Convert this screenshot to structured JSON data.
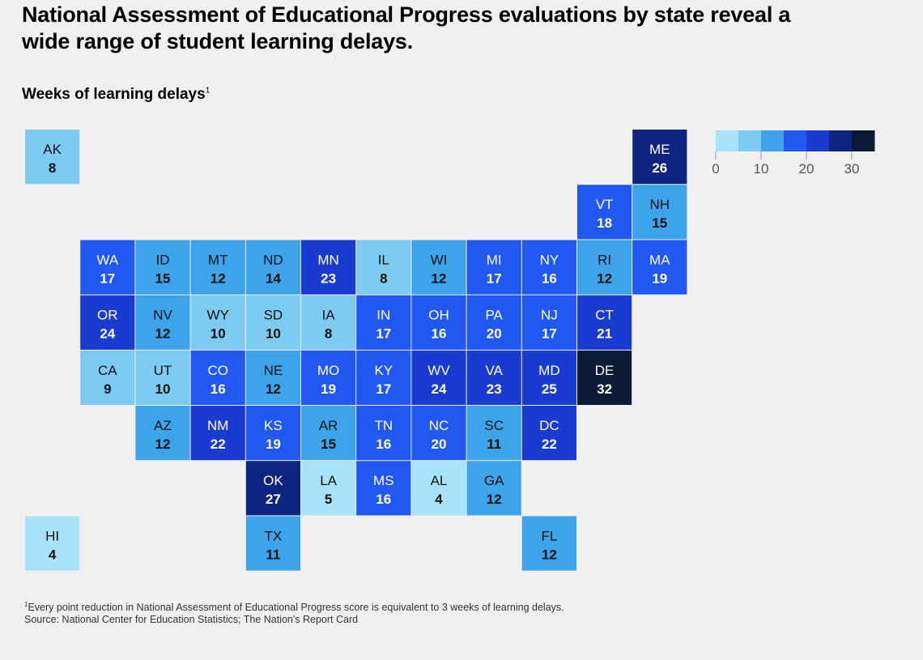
{
  "title": "National Assessment of Educational Progress evaluations by state reveal a wide range of student learning delays.",
  "subtitle": "Weeks of learning delays",
  "subtitle_footnote_mark": "1",
  "footnote_mark": "1",
  "footnote": "Every point reduction in National Assessment of Educational Progress score is equivalent to 3 weeks of learning delays.",
  "source": "Source: National Center for Education Statistics; The Nation's Report Card",
  "chart_data": {
    "type": "heatmap",
    "title": "National Assessment of Educational Progress evaluations by state reveal a wide range of student learning delays.",
    "value_label": "Weeks of learning delays",
    "legend": {
      "ticks": [
        0,
        10,
        20,
        30
      ],
      "colors": [
        "#a9e2fb",
        "#7ecbf1",
        "#3da3ea",
        "#2158f2",
        "#1a3bd0",
        "#0f2381",
        "#0b1a35"
      ],
      "placement": "top-right"
    },
    "states": [
      {
        "abbr": "AK",
        "value": 8,
        "row": 0,
        "col": 0
      },
      {
        "abbr": "ME",
        "value": 26,
        "row": 0,
        "col": 11
      },
      {
        "abbr": "VT",
        "value": 18,
        "row": 1,
        "col": 10
      },
      {
        "abbr": "NH",
        "value": 15,
        "row": 1,
        "col": 11
      },
      {
        "abbr": "WA",
        "value": 17,
        "row": 2,
        "col": 1
      },
      {
        "abbr": "ID",
        "value": 15,
        "row": 2,
        "col": 2
      },
      {
        "abbr": "MT",
        "value": 12,
        "row": 2,
        "col": 3
      },
      {
        "abbr": "ND",
        "value": 14,
        "row": 2,
        "col": 4
      },
      {
        "abbr": "MN",
        "value": 23,
        "row": 2,
        "col": 5
      },
      {
        "abbr": "IL",
        "value": 8,
        "row": 2,
        "col": 6
      },
      {
        "abbr": "WI",
        "value": 12,
        "row": 2,
        "col": 7
      },
      {
        "abbr": "MI",
        "value": 17,
        "row": 2,
        "col": 8
      },
      {
        "abbr": "NY",
        "value": 16,
        "row": 2,
        "col": 9
      },
      {
        "abbr": "RI",
        "value": 12,
        "row": 2,
        "col": 10
      },
      {
        "abbr": "MA",
        "value": 19,
        "row": 2,
        "col": 11
      },
      {
        "abbr": "OR",
        "value": 24,
        "row": 3,
        "col": 1
      },
      {
        "abbr": "NV",
        "value": 12,
        "row": 3,
        "col": 2
      },
      {
        "abbr": "WY",
        "value": 10,
        "row": 3,
        "col": 3
      },
      {
        "abbr": "SD",
        "value": 10,
        "row": 3,
        "col": 4
      },
      {
        "abbr": "IA",
        "value": 8,
        "row": 3,
        "col": 5
      },
      {
        "abbr": "IN",
        "value": 17,
        "row": 3,
        "col": 6
      },
      {
        "abbr": "OH",
        "value": 16,
        "row": 3,
        "col": 7
      },
      {
        "abbr": "PA",
        "value": 20,
        "row": 3,
        "col": 8
      },
      {
        "abbr": "NJ",
        "value": 17,
        "row": 3,
        "col": 9
      },
      {
        "abbr": "CT",
        "value": 21,
        "row": 3,
        "col": 10
      },
      {
        "abbr": "CA",
        "value": 9,
        "row": 4,
        "col": 1
      },
      {
        "abbr": "UT",
        "value": 10,
        "row": 4,
        "col": 2
      },
      {
        "abbr": "CO",
        "value": 16,
        "row": 4,
        "col": 3
      },
      {
        "abbr": "NE",
        "value": 12,
        "row": 4,
        "col": 4
      },
      {
        "abbr": "MO",
        "value": 19,
        "row": 4,
        "col": 5
      },
      {
        "abbr": "KY",
        "value": 17,
        "row": 4,
        "col": 6
      },
      {
        "abbr": "WV",
        "value": 24,
        "row": 4,
        "col": 7
      },
      {
        "abbr": "VA",
        "value": 23,
        "row": 4,
        "col": 8
      },
      {
        "abbr": "MD",
        "value": 25,
        "row": 4,
        "col": 9
      },
      {
        "abbr": "DE",
        "value": 32,
        "row": 4,
        "col": 10
      },
      {
        "abbr": "AZ",
        "value": 12,
        "row": 5,
        "col": 2
      },
      {
        "abbr": "NM",
        "value": 22,
        "row": 5,
        "col": 3
      },
      {
        "abbr": "KS",
        "value": 19,
        "row": 5,
        "col": 4
      },
      {
        "abbr": "AR",
        "value": 15,
        "row": 5,
        "col": 5
      },
      {
        "abbr": "TN",
        "value": 16,
        "row": 5,
        "col": 6
      },
      {
        "abbr": "NC",
        "value": 20,
        "row": 5,
        "col": 7
      },
      {
        "abbr": "SC",
        "value": 11,
        "row": 5,
        "col": 8
      },
      {
        "abbr": "DC",
        "value": 22,
        "row": 5,
        "col": 9
      },
      {
        "abbr": "OK",
        "value": 27,
        "row": 6,
        "col": 4
      },
      {
        "abbr": "LA",
        "value": 5,
        "row": 6,
        "col": 5
      },
      {
        "abbr": "MS",
        "value": 16,
        "row": 6,
        "col": 6
      },
      {
        "abbr": "AL",
        "value": 4,
        "row": 6,
        "col": 7
      },
      {
        "abbr": "GA",
        "value": 12,
        "row": 6,
        "col": 8
      },
      {
        "abbr": "HI",
        "value": 4,
        "row": 7,
        "col": 0
      },
      {
        "abbr": "TX",
        "value": 11,
        "row": 7,
        "col": 4
      },
      {
        "abbr": "FL",
        "value": 12,
        "row": 7,
        "col": 9
      }
    ]
  }
}
